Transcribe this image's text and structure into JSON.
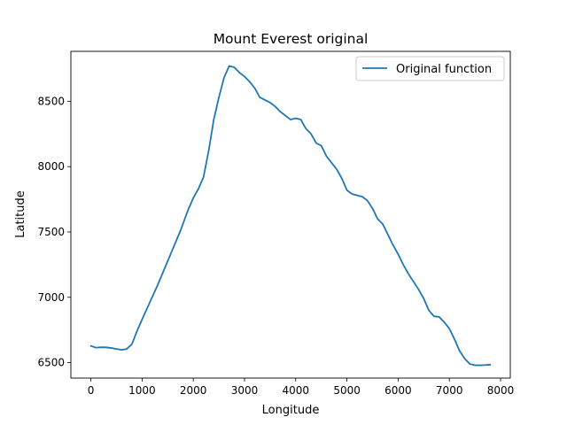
{
  "chart_data": {
    "type": "line",
    "title": "Mount Everest original",
    "xlabel": "Longitude",
    "ylabel": "Latitude",
    "xlim": [
      -390,
      8190
    ],
    "ylim": [
      6382,
      8882
    ],
    "xticks": [
      0,
      1000,
      2000,
      3000,
      4000,
      5000,
      6000,
      7000,
      8000
    ],
    "yticks": [
      6500,
      7000,
      7500,
      8000,
      8500
    ],
    "grid": false,
    "legend": {
      "placement": "top-right",
      "entries": [
        "Original function"
      ]
    },
    "colors": {
      "line": "#1f77b4"
    },
    "series": [
      {
        "name": "Original function",
        "x": [
          0,
          100,
          200,
          300,
          400,
          500,
          600,
          700,
          800,
          900,
          1000,
          1150,
          1300,
          1450,
          1600,
          1750,
          1900,
          2000,
          2100,
          2200,
          2300,
          2400,
          2500,
          2600,
          2700,
          2800,
          2900,
          3000,
          3100,
          3200,
          3300,
          3400,
          3500,
          3600,
          3700,
          3800,
          3900,
          4000,
          4100,
          4200,
          4300,
          4400,
          4500,
          4600,
          4700,
          4800,
          4900,
          5000,
          5100,
          5200,
          5300,
          5400,
          5500,
          5600,
          5700,
          5800,
          5900,
          6000,
          6100,
          6200,
          6300,
          6400,
          6500,
          6600,
          6700,
          6800,
          6900,
          7000,
          7100,
          7200,
          7300,
          7400,
          7500,
          7600,
          7700,
          7800
        ],
        "y": [
          6628,
          6615,
          6618,
          6617,
          6612,
          6605,
          6598,
          6605,
          6640,
          6740,
          6830,
          6960,
          7090,
          7230,
          7370,
          7510,
          7670,
          7760,
          7830,
          7920,
          8120,
          8360,
          8530,
          8680,
          8770,
          8760,
          8720,
          8690,
          8650,
          8600,
          8530,
          8510,
          8490,
          8460,
          8420,
          8390,
          8360,
          8370,
          8360,
          8290,
          8250,
          8180,
          8160,
          8080,
          8030,
          7980,
          7910,
          7820,
          7790,
          7780,
          7770,
          7740,
          7680,
          7600,
          7560,
          7480,
          7400,
          7330,
          7250,
          7180,
          7120,
          7060,
          6990,
          6900,
          6855,
          6850,
          6810,
          6760,
          6680,
          6590,
          6530,
          6490,
          6480,
          6480,
          6482,
          6485
        ]
      }
    ]
  }
}
